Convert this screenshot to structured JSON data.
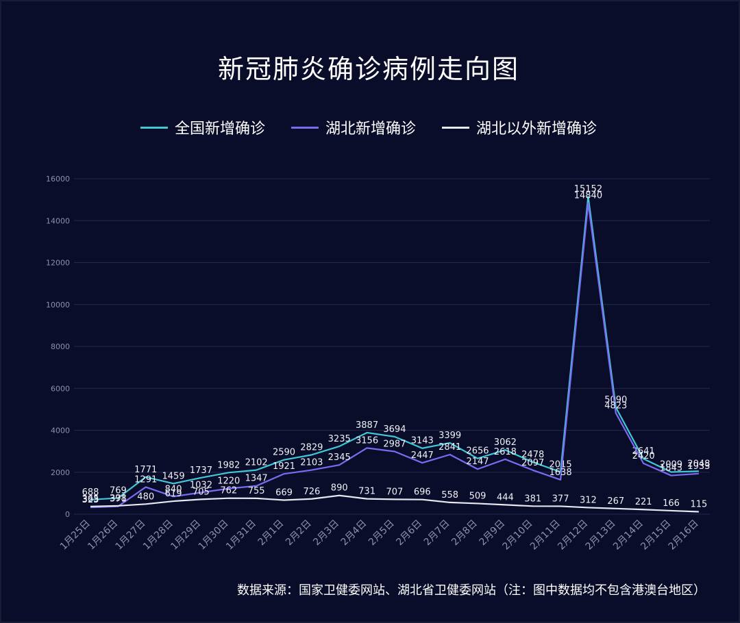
{
  "chart_data": {
    "type": "line",
    "title": "新冠肺炎确诊病例走向图",
    "source": "数据来源：国家卫健委网站、湖北省卫健委网站（注：图中数据均不包含港澳台地区）",
    "ylim": [
      0,
      16000
    ],
    "yticks": [
      "0",
      "2000",
      "4000",
      "6000",
      "8000",
      "10000",
      "12000",
      "14000",
      "16000"
    ],
    "ytick_values": [
      0,
      2000,
      4000,
      6000,
      8000,
      10000,
      12000,
      14000,
      16000
    ],
    "grid": true,
    "legend_position": "top",
    "categories": [
      "1月25日",
      "1月26日",
      "1月27日",
      "1月28日",
      "1月29日",
      "1月30日",
      "1月31日",
      "2月1日",
      "2月2日",
      "2月3日",
      "2月4日",
      "2月5日",
      "2月6日",
      "2月7日",
      "2月8日",
      "2月9日",
      "2月10日",
      "2月11日",
      "2月12日",
      "2月13日",
      "2月14日",
      "2月15日",
      "2月16日"
    ],
    "series": [
      {
        "name": "全国新增确诊",
        "color": "#40c8d8",
        "labels_position": "above",
        "values": [
          688,
          769,
          1771,
          1459,
          1737,
          1982,
          2102,
          2590,
          2829,
          3235,
          3887,
          3694,
          3143,
          3399,
          2656,
          3062,
          2478,
          2015,
          15152,
          5090,
          2641,
          2009,
          2048
        ]
      },
      {
        "name": "湖北新增确诊",
        "color": "#7a6cf0",
        "labels_position": "above",
        "values": [
          323,
          371,
          1291,
          840,
          1032,
          1220,
          1347,
          1921,
          2103,
          2345,
          3156,
          2987,
          2447,
          2841,
          2147,
          2618,
          2097,
          1638,
          14840,
          4823,
          2420,
          1843,
          1933
        ]
      },
      {
        "name": "湖北以外新增确诊",
        "color": "#e8e8f0",
        "labels_position": "above",
        "values": [
          365,
          398,
          480,
          619,
          705,
          762,
          755,
          669,
          726,
          890,
          731,
          707,
          696,
          558,
          509,
          444,
          381,
          377,
          312,
          267,
          221,
          166,
          115
        ]
      }
    ]
  }
}
